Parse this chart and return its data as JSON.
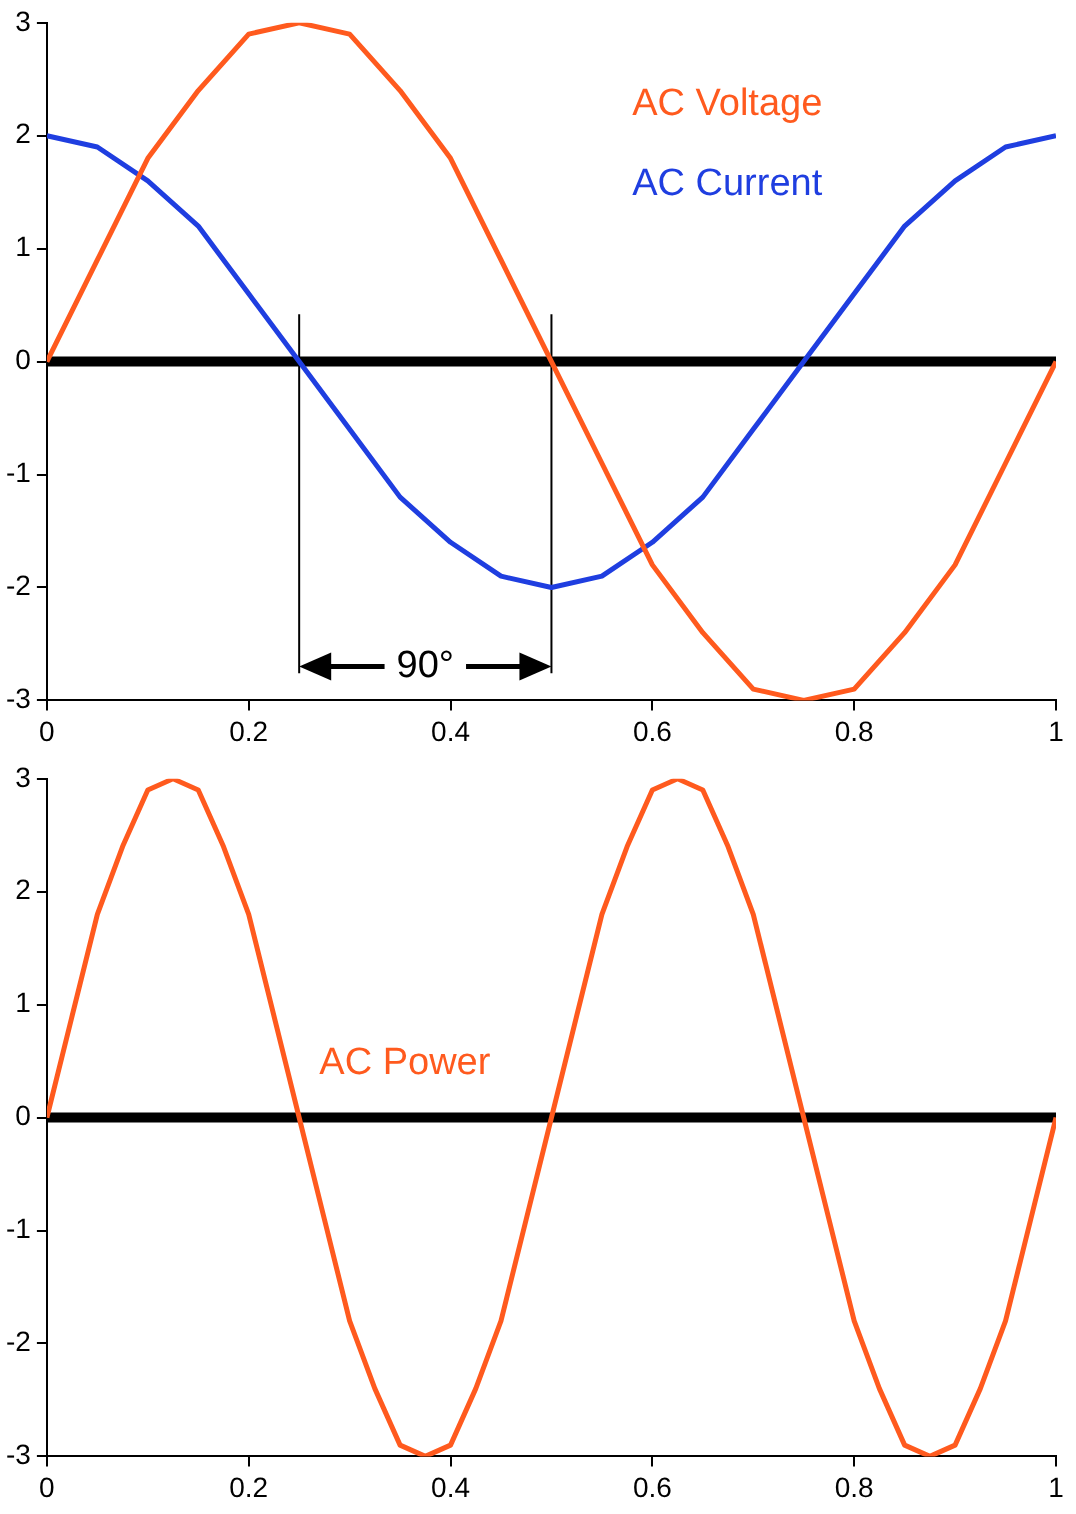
{
  "chart_data": [
    {
      "type": "line",
      "x": [
        0,
        0.05,
        0.1,
        0.15,
        0.2,
        0.25,
        0.3,
        0.35,
        0.4,
        0.45,
        0.5,
        0.55,
        0.6,
        0.65,
        0.7,
        0.75,
        0.8,
        0.85,
        0.9,
        0.95,
        1
      ],
      "series": [
        {
          "name": "AC Voltage",
          "color": "#ff5a1e",
          "values": [
            0,
            0.9,
            1.8,
            2.4,
            2.9,
            3,
            2.9,
            2.4,
            1.8,
            0.9,
            0,
            -0.9,
            -1.8,
            -2.4,
            -2.9,
            -3,
            -2.9,
            -2.4,
            -1.8,
            -0.9,
            0
          ]
        },
        {
          "name": "AC Current",
          "color": "#1f3ee0",
          "values": [
            2,
            1.9,
            1.6,
            1.2,
            0.6,
            0,
            -0.6,
            -1.2,
            -1.6,
            -1.9,
            -2,
            -1.9,
            -1.6,
            -1.2,
            -0.6,
            0,
            0.6,
            1.2,
            1.6,
            1.9,
            2
          ]
        }
      ],
      "xlim": [
        0,
        1
      ],
      "ylim": [
        -3,
        3
      ],
      "xticks": [
        0,
        0.2,
        0.4,
        0.6,
        0.8,
        1
      ],
      "yticks": [
        -3,
        -2,
        -1,
        0,
        1,
        2,
        3
      ],
      "grid": false,
      "legend": false,
      "marker": "none",
      "line_style": "solid",
      "ref_lines": [
        {
          "axis": "y",
          "value": 0,
          "color": "#000000"
        },
        {
          "axis": "x",
          "value": 0.25,
          "color": "#000000"
        },
        {
          "axis": "x",
          "value": 0.5,
          "color": "#000000"
        }
      ],
      "annotations": [
        {
          "text": "90°",
          "x": 0.25,
          "y": -2.7
        }
      ]
    },
    {
      "type": "line",
      "x": [
        0,
        0.025,
        0.05,
        0.075,
        0.1,
        0.125,
        0.15,
        0.175,
        0.2,
        0.225,
        0.25,
        0.275,
        0.3,
        0.325,
        0.35,
        0.375,
        0.4,
        0.425,
        0.45,
        0.475,
        0.5,
        0.525,
        0.55,
        0.575,
        0.6,
        0.625,
        0.65,
        0.675,
        0.7,
        0.725,
        0.75,
        0.775,
        0.8,
        0.825,
        0.85,
        0.875,
        0.9,
        0.925,
        0.95,
        0.975,
        1
      ],
      "series": [
        {
          "name": "AC Power",
          "color": "#ff5a1e",
          "values": [
            0,
            0.9,
            1.8,
            2.4,
            2.9,
            3,
            2.9,
            2.4,
            1.8,
            0.9,
            0,
            -0.9,
            -1.8,
            -2.4,
            -2.9,
            -3,
            -2.9,
            -2.4,
            -1.8,
            -0.9,
            0,
            0.9,
            1.8,
            2.4,
            2.9,
            3,
            2.9,
            2.4,
            1.8,
            0.9,
            0,
            -0.9,
            -1.8,
            -2.4,
            -2.9,
            -3,
            -2.9,
            -2.4,
            -1.8,
            -0.9,
            0
          ]
        }
      ],
      "xlim": [
        0,
        1
      ],
      "ylim": [
        -3,
        3
      ],
      "xticks": [
        0,
        0.2,
        0.4,
        0.6,
        0.8,
        1
      ],
      "yticks": [
        -3,
        -2,
        -1,
        0,
        1,
        2,
        3
      ],
      "grid": false,
      "legend": false,
      "marker": "none",
      "line_style": "solid",
      "ref_lines": [
        {
          "axis": "y",
          "value": 0,
          "color": "#000000"
        }
      ]
    }
  ]
}
